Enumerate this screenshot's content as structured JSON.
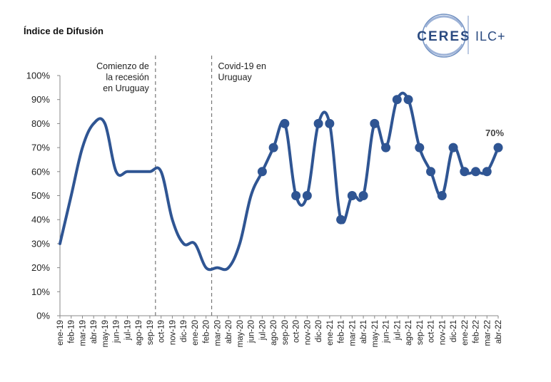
{
  "header": {
    "title": "Índice de Difusión"
  },
  "logo": {
    "main": "CERES",
    "side": "ILC+"
  },
  "colors": {
    "line": "#2f5593",
    "axis": "#888888",
    "annot_line": "#777777"
  },
  "chart_data": {
    "type": "line",
    "title": "Índice de Difusión",
    "xlabel": "",
    "ylabel": "",
    "ylim": [
      0,
      100
    ],
    "y_ticks": [
      0,
      10,
      20,
      30,
      40,
      50,
      60,
      70,
      80,
      90,
      100
    ],
    "y_tick_labels": [
      "0%",
      "10%",
      "20%",
      "30%",
      "40%",
      "50%",
      "60%",
      "70%",
      "80%",
      "90%",
      "100%"
    ],
    "categories": [
      "ene-19",
      "feb-19",
      "mar-19",
      "abr-19",
      "may-19",
      "jun-19",
      "jul-19",
      "ago-19",
      "sep-19",
      "oct-19",
      "nov-19",
      "dic-19",
      "ene-20",
      "feb-20",
      "mar-20",
      "abr-20",
      "may-20",
      "jun-20",
      "jul-20",
      "ago-20",
      "sep-20",
      "oct-20",
      "nov-20",
      "dic-20",
      "ene-21",
      "feb-21",
      "mar-21",
      "abr-21",
      "may-21",
      "jun-21",
      "jul-21",
      "ago-21",
      "sep-21",
      "oct-21",
      "nov-21",
      "dic-21",
      "ene-22",
      "feb-22",
      "mar-22",
      "abr-22"
    ],
    "series": [
      {
        "name": "Índice de Difusión",
        "values": [
          30,
          50,
          70,
          80,
          80,
          60,
          60,
          60,
          60,
          60,
          40,
          30,
          30,
          20,
          20,
          20,
          30,
          50,
          60,
          70,
          80,
          50,
          50,
          80,
          80,
          40,
          50,
          50,
          80,
          70,
          90,
          90,
          70,
          60,
          50,
          70,
          60,
          60,
          60,
          70
        ],
        "marker_start_index": 18
      }
    ],
    "annotations": [
      {
        "between": [
          "sep-19",
          "oct-19"
        ],
        "lines": [
          "Comienzo de",
          "la recesión",
          "en Uruguay"
        ],
        "align": "right"
      },
      {
        "between": [
          "feb-20",
          "mar-20"
        ],
        "lines": [
          "Covid-19 en",
          "Uruguay"
        ],
        "align": "left"
      }
    ],
    "last_value_label": "70%",
    "legend": "none",
    "grid": false
  }
}
